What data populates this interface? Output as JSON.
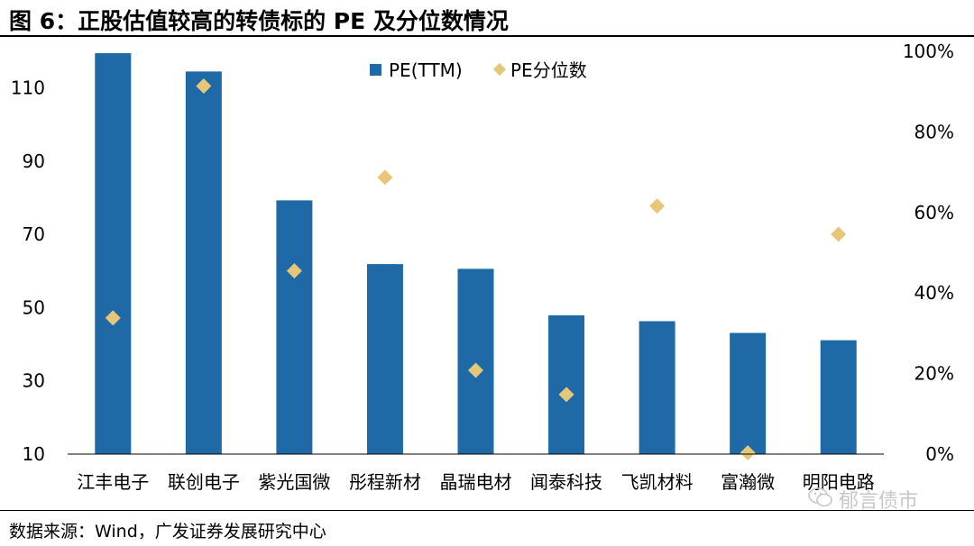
{
  "header": {
    "title": "图 6：正股估值较高的转债标的 PE 及分位数情况"
  },
  "footer": {
    "source": "数据来源：Wind，广发证券发展研究中心",
    "watermark": "郁言债市"
  },
  "colors": {
    "bar": "#1f6aa6",
    "marker": "#e6c77a"
  },
  "chart_data": {
    "type": "bar",
    "title": "",
    "categories": [
      "江丰电子",
      "联创电子",
      "紫光国微",
      "彤程新材",
      "晶瑞电材",
      "闻泰科技",
      "飞凯材料",
      "富瀚微",
      "明阳电路"
    ],
    "series": [
      {
        "name": "PE(TTM)",
        "type": "bar",
        "axis": "left",
        "values": [
          119.5,
          114.5,
          79.3,
          61.9,
          60.6,
          47.9,
          46.3,
          43.1,
          41.1
        ]
      },
      {
        "name": "PE分位数",
        "type": "scatter",
        "axis": "right",
        "values": [
          33.8,
          91.4,
          45.5,
          68.7,
          20.8,
          14.8,
          61.6,
          0.3,
          54.6
        ]
      }
    ],
    "left_axis": {
      "min": 10,
      "max": 120,
      "ticks": [
        "110",
        "90",
        "70",
        "50",
        "30",
        "10"
      ],
      "tick_values": [
        110,
        90,
        70,
        50,
        30,
        10
      ]
    },
    "right_axis": {
      "min": 0,
      "max": 100,
      "ticks": [
        "100%",
        "80%",
        "60%",
        "40%",
        "20%",
        "0%"
      ],
      "tick_values": [
        100,
        80,
        60,
        40,
        20,
        0
      ]
    },
    "legend": {
      "position": "top-center",
      "labels": [
        "PE(TTM)",
        "PE分位数"
      ]
    },
    "grid": false
  }
}
